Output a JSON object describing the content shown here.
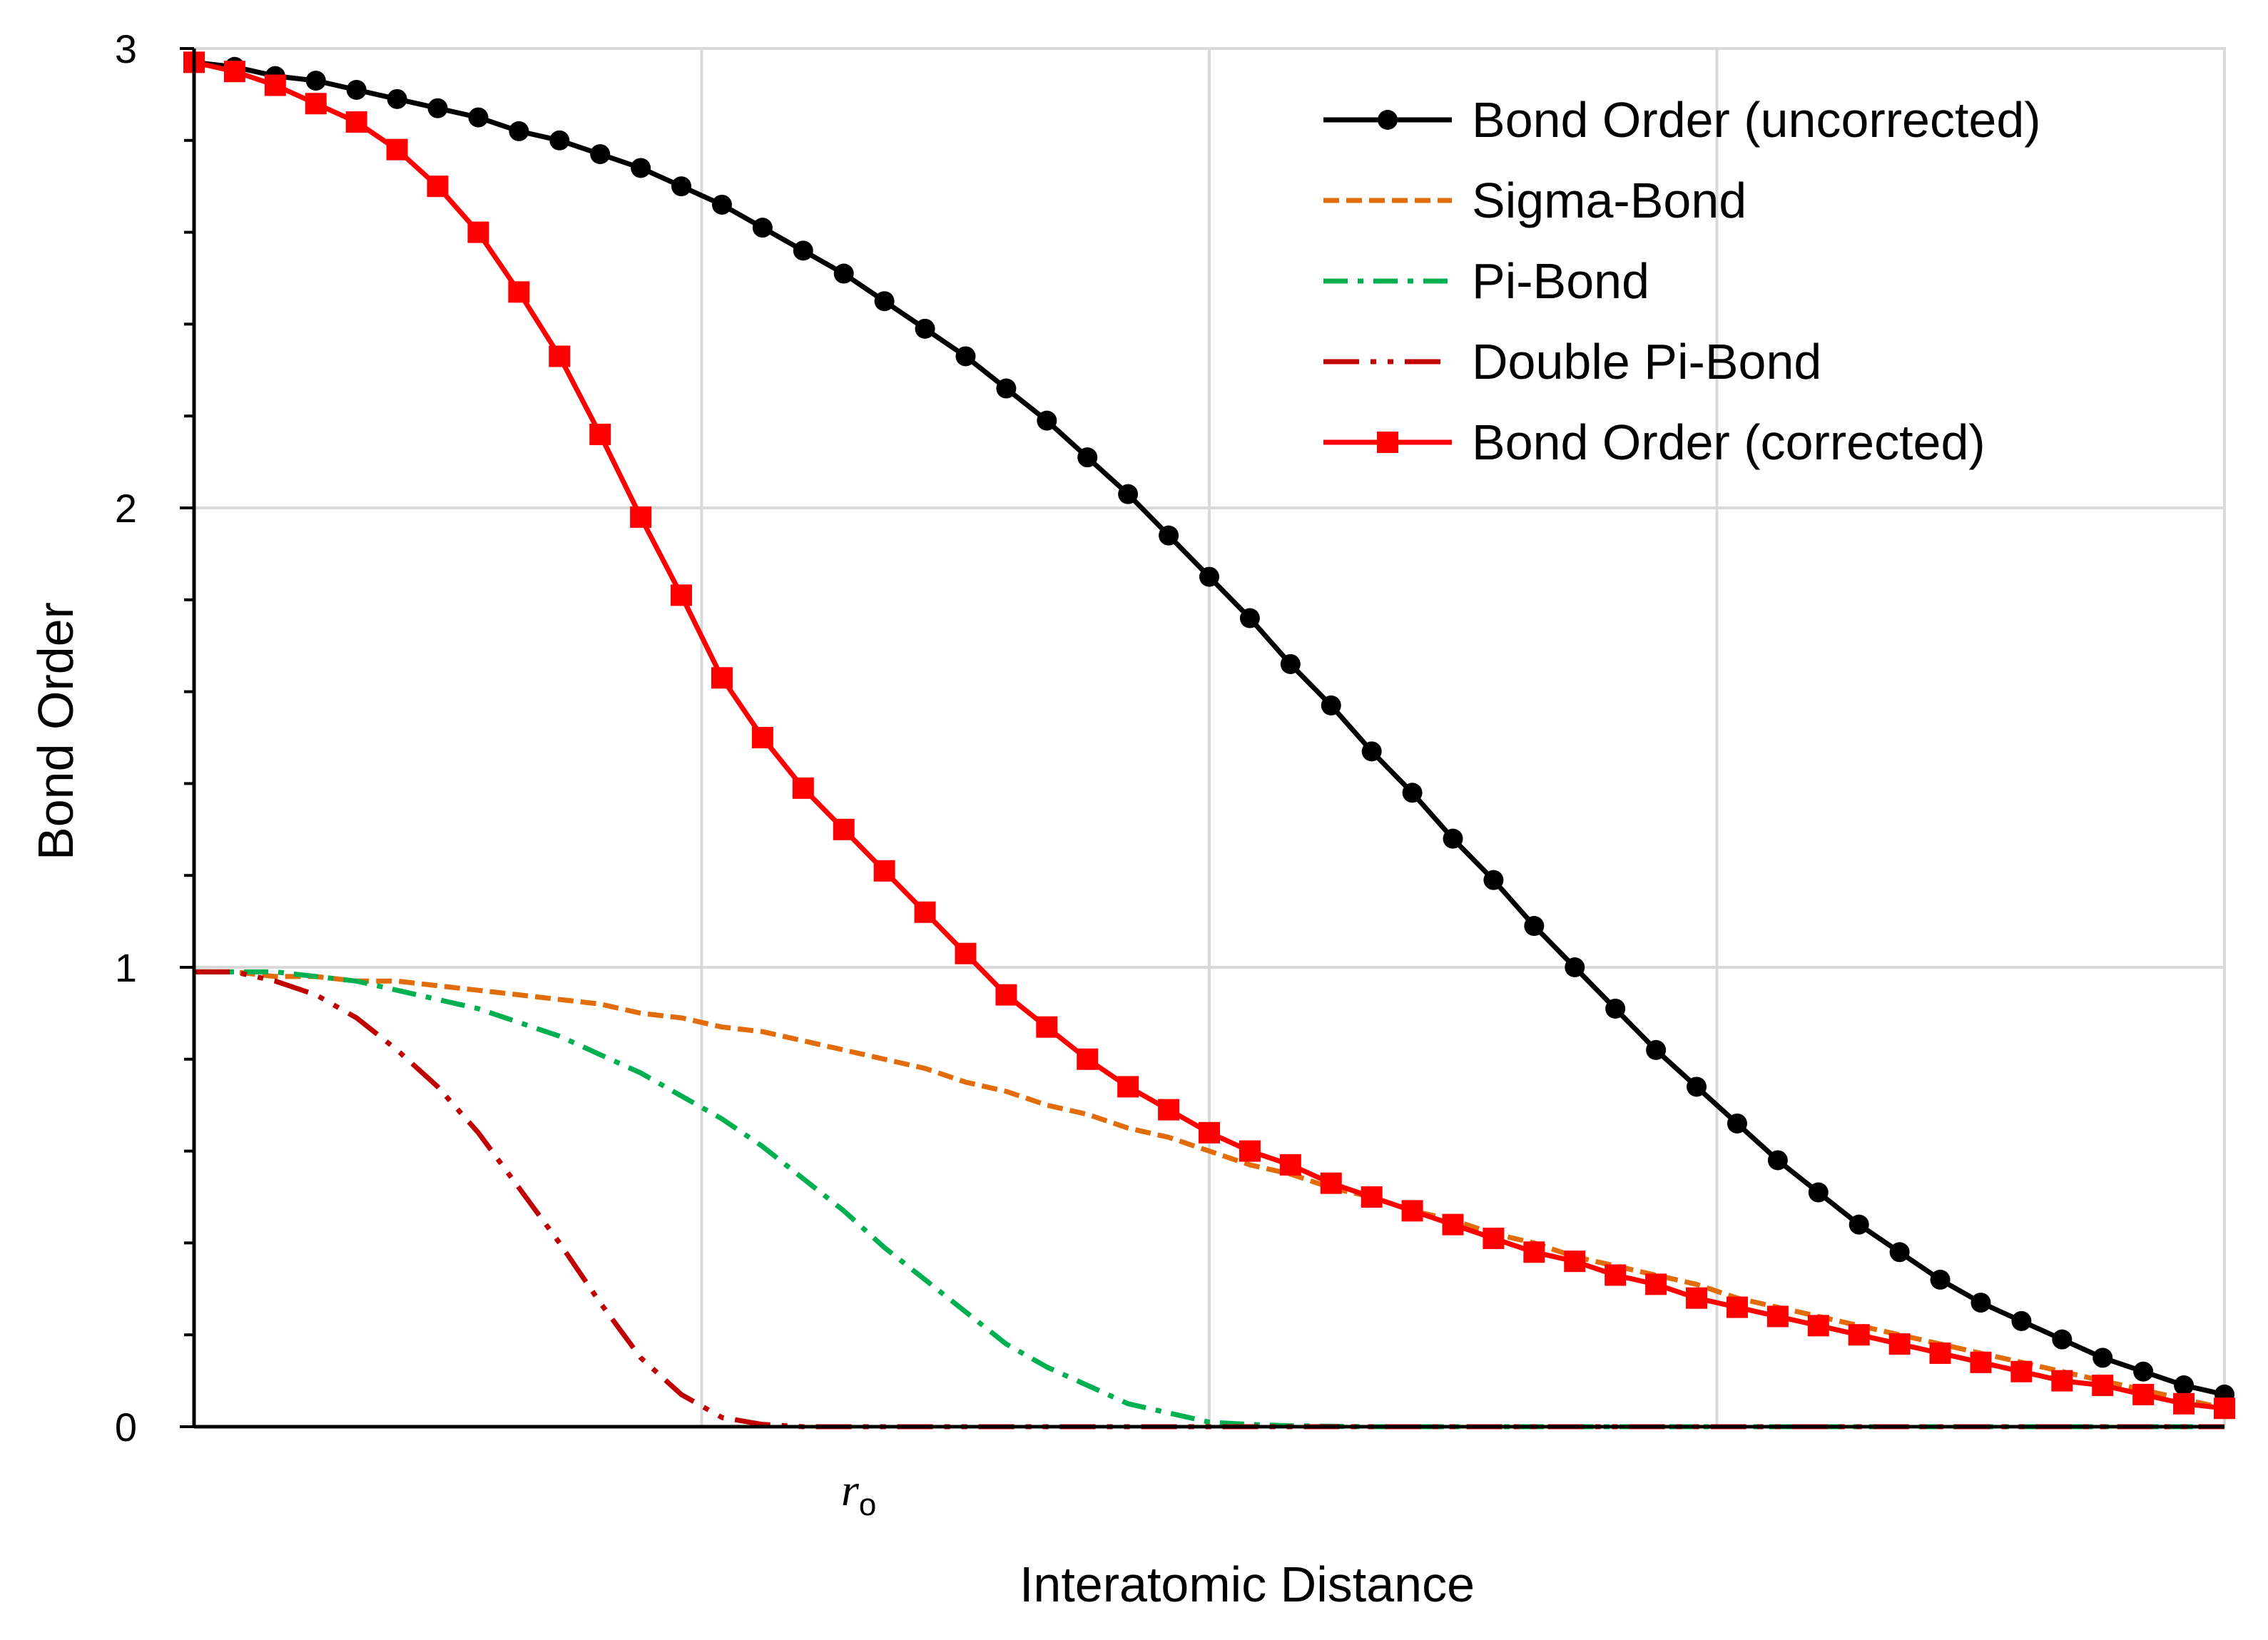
{
  "chart_data": {
    "type": "line",
    "title": "",
    "xlabel": "Interatomic Distance",
    "ylabel": "Bond Order",
    "ylim": [
      0,
      3
    ],
    "xlim": [
      0,
      1
    ],
    "y_ticks": [
      "0",
      "1",
      "2",
      "3"
    ],
    "y_tick_values": [
      0,
      1,
      2,
      3
    ],
    "x_annotation": {
      "text": "r",
      "subscript": "o",
      "x": 0.325
    },
    "grid": true,
    "legend_position": "top-right",
    "colors": {
      "uncorrected": "#000000",
      "sigma": "#E36C0A",
      "pi": "#00B050",
      "double_pi": "#C00000",
      "corrected": "#FF0000",
      "grid": "#D9D9D9",
      "axis": "#000000"
    },
    "series": [
      {
        "name": "Bond Order (uncorrected)",
        "key": "uncorrected",
        "style": "solid-circle",
        "x": [
          0,
          0.02,
          0.04,
          0.06,
          0.08,
          0.1,
          0.12,
          0.14,
          0.16,
          0.18,
          0.2,
          0.22,
          0.24,
          0.26,
          0.28,
          0.3,
          0.32,
          0.34,
          0.36,
          0.38,
          0.4,
          0.42,
          0.44,
          0.46,
          0.48,
          0.5,
          0.52,
          0.54,
          0.56,
          0.58,
          0.6,
          0.62,
          0.64,
          0.66,
          0.68,
          0.7,
          0.72,
          0.74,
          0.76,
          0.78,
          0.8,
          0.82,
          0.84,
          0.86,
          0.88,
          0.9,
          0.92,
          0.94,
          0.96,
          0.98,
          1.0
        ],
        "y": [
          2.97,
          2.96,
          2.94,
          2.93,
          2.91,
          2.89,
          2.87,
          2.85,
          2.82,
          2.8,
          2.77,
          2.74,
          2.7,
          2.66,
          2.61,
          2.56,
          2.51,
          2.45,
          2.39,
          2.33,
          2.26,
          2.19,
          2.11,
          2.03,
          1.94,
          1.85,
          1.76,
          1.66,
          1.57,
          1.47,
          1.38,
          1.28,
          1.19,
          1.09,
          1.0,
          0.91,
          0.82,
          0.74,
          0.66,
          0.58,
          0.51,
          0.44,
          0.38,
          0.32,
          0.27,
          0.23,
          0.19,
          0.15,
          0.12,
          0.09,
          0.07
        ]
      },
      {
        "name": "Sigma-Bond",
        "key": "sigma",
        "style": "dash",
        "x": [
          0,
          0.02,
          0.04,
          0.06,
          0.08,
          0.1,
          0.12,
          0.14,
          0.16,
          0.18,
          0.2,
          0.22,
          0.24,
          0.26,
          0.28,
          0.3,
          0.32,
          0.34,
          0.36,
          0.38,
          0.4,
          0.42,
          0.44,
          0.46,
          0.48,
          0.5,
          0.52,
          0.54,
          0.56,
          0.58,
          0.6,
          0.62,
          0.64,
          0.66,
          0.68,
          0.7,
          0.72,
          0.74,
          0.76,
          0.78,
          0.8,
          0.82,
          0.84,
          0.86,
          0.88,
          0.9,
          0.92,
          0.94,
          0.96,
          0.98,
          1.0
        ],
        "y": [
          0.99,
          0.99,
          0.98,
          0.98,
          0.97,
          0.97,
          0.96,
          0.95,
          0.94,
          0.93,
          0.92,
          0.9,
          0.89,
          0.87,
          0.86,
          0.84,
          0.82,
          0.8,
          0.78,
          0.75,
          0.73,
          0.7,
          0.68,
          0.65,
          0.63,
          0.6,
          0.57,
          0.55,
          0.52,
          0.5,
          0.47,
          0.45,
          0.42,
          0.4,
          0.37,
          0.35,
          0.33,
          0.31,
          0.28,
          0.26,
          0.24,
          0.22,
          0.2,
          0.18,
          0.16,
          0.14,
          0.12,
          0.1,
          0.08,
          0.06,
          0.04
        ]
      },
      {
        "name": "Pi-Bond",
        "key": "pi",
        "style": "dash-dot",
        "x": [
          0,
          0.02,
          0.04,
          0.06,
          0.08,
          0.1,
          0.12,
          0.14,
          0.16,
          0.18,
          0.2,
          0.22,
          0.24,
          0.26,
          0.28,
          0.3,
          0.32,
          0.34,
          0.36,
          0.38,
          0.4,
          0.42,
          0.44,
          0.46,
          0.48,
          0.5,
          0.52,
          0.54,
          0.56,
          0.58,
          0.6,
          0.65,
          0.7,
          0.75,
          0.8,
          0.85,
          0.9,
          0.95,
          1.0
        ],
        "y": [
          0.99,
          0.99,
          0.99,
          0.98,
          0.97,
          0.95,
          0.93,
          0.91,
          0.88,
          0.85,
          0.81,
          0.77,
          0.72,
          0.67,
          0.61,
          0.54,
          0.47,
          0.39,
          0.32,
          0.25,
          0.18,
          0.13,
          0.09,
          0.05,
          0.03,
          0.01,
          0.005,
          0.002,
          0.001,
          0,
          0,
          0,
          0,
          0,
          0,
          0,
          0,
          0,
          0
        ]
      },
      {
        "name": "Double Pi-Bond",
        "key": "double_pi",
        "style": "dash-dot-dot",
        "x": [
          0,
          0.02,
          0.04,
          0.06,
          0.08,
          0.1,
          0.12,
          0.14,
          0.16,
          0.18,
          0.2,
          0.22,
          0.24,
          0.26,
          0.28,
          0.3,
          0.32,
          0.34,
          0.36,
          0.38,
          0.4,
          0.45,
          0.5,
          0.55,
          0.6,
          0.65,
          0.7,
          0.75,
          0.8,
          0.85,
          0.9,
          0.95,
          1.0
        ],
        "y": [
          0.99,
          0.99,
          0.97,
          0.94,
          0.89,
          0.82,
          0.74,
          0.64,
          0.52,
          0.4,
          0.27,
          0.15,
          0.07,
          0.02,
          0.005,
          0,
          0,
          0,
          0,
          0,
          0,
          0,
          0,
          0,
          0,
          0,
          0,
          0,
          0,
          0,
          0,
          0,
          0
        ]
      },
      {
        "name": "Bond Order (corrected)",
        "key": "corrected",
        "style": "solid-square",
        "x": [
          0,
          0.02,
          0.04,
          0.06,
          0.08,
          0.1,
          0.12,
          0.14,
          0.16,
          0.18,
          0.2,
          0.22,
          0.24,
          0.26,
          0.28,
          0.3,
          0.32,
          0.34,
          0.36,
          0.38,
          0.4,
          0.42,
          0.44,
          0.46,
          0.48,
          0.5,
          0.52,
          0.54,
          0.56,
          0.58,
          0.6,
          0.62,
          0.64,
          0.66,
          0.68,
          0.7,
          0.72,
          0.74,
          0.76,
          0.78,
          0.8,
          0.82,
          0.84,
          0.86,
          0.88,
          0.9,
          0.92,
          0.94,
          0.96,
          0.98,
          1.0
        ],
        "y": [
          2.97,
          2.95,
          2.92,
          2.88,
          2.84,
          2.78,
          2.7,
          2.6,
          2.47,
          2.33,
          2.16,
          1.98,
          1.81,
          1.63,
          1.5,
          1.39,
          1.3,
          1.21,
          1.12,
          1.03,
          0.94,
          0.87,
          0.8,
          0.74,
          0.69,
          0.64,
          0.6,
          0.57,
          0.53,
          0.5,
          0.47,
          0.44,
          0.41,
          0.38,
          0.36,
          0.33,
          0.31,
          0.28,
          0.26,
          0.24,
          0.22,
          0.2,
          0.18,
          0.16,
          0.14,
          0.12,
          0.1,
          0.09,
          0.07,
          0.05,
          0.04
        ]
      }
    ]
  }
}
